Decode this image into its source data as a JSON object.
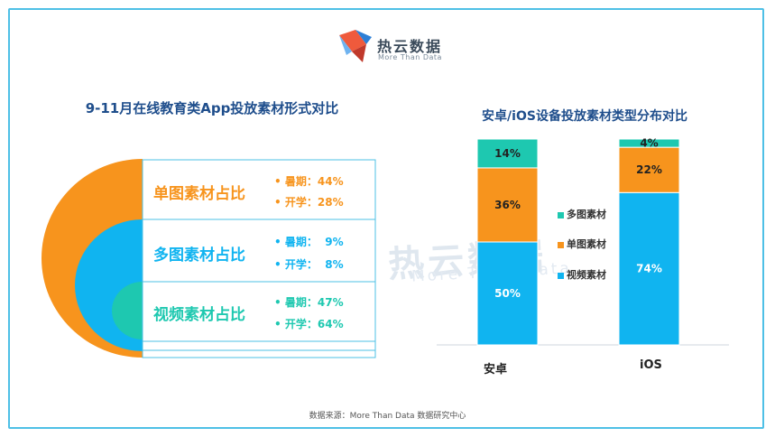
{
  "brand": {
    "name": "热云数据",
    "sub": "More Than Data"
  },
  "watermark": {
    "name": "热云数据",
    "sub": "More Than Data"
  },
  "footer": "数据来源：More Than Data 数据研究中心",
  "colors": {
    "orange": "#f7941d",
    "blue": "#10b4f0",
    "teal": "#1ec8b0",
    "frame": "#4ec0e6",
    "title": "#1f4e8c"
  },
  "chart_data": [
    {
      "type": "table",
      "title": "9-11月在线教育类App投放素材形式对比",
      "rows": [
        {
          "label": "单图素材占比",
          "summer_label": "暑期：",
          "summer": "44%",
          "school_label": "开学：",
          "school": "28%",
          "color": "#f7941d"
        },
        {
          "label": "多图素材占比",
          "summer_label": "暑期：",
          "summer": "9%",
          "school_label": "开学：",
          "school": "8%",
          "color": "#10b4f0"
        },
        {
          "label": "视频素材占比",
          "summer_label": "暑期：",
          "summer": "47%",
          "school_label": "开学：",
          "school": "64%",
          "color": "#1ec8b0"
        }
      ]
    },
    {
      "type": "bar",
      "stacked": true,
      "title": "安卓/iOS设备投放素材类型分布对比",
      "categories": [
        "安卓",
        "iOS"
      ],
      "series": [
        {
          "name": "视频素材",
          "color": "#10b4f0",
          "values": [
            50,
            74
          ],
          "labels": [
            "50%",
            "74%"
          ]
        },
        {
          "name": "单图素材",
          "color": "#f7941d",
          "values": [
            36,
            22
          ],
          "labels": [
            "36%",
            "22%"
          ]
        },
        {
          "name": "多图素材",
          "color": "#1ec8b0",
          "values": [
            14,
            4
          ],
          "labels": [
            "14%",
            "4%"
          ]
        }
      ],
      "ylim": [
        0,
        100
      ],
      "legend": "center"
    }
  ]
}
